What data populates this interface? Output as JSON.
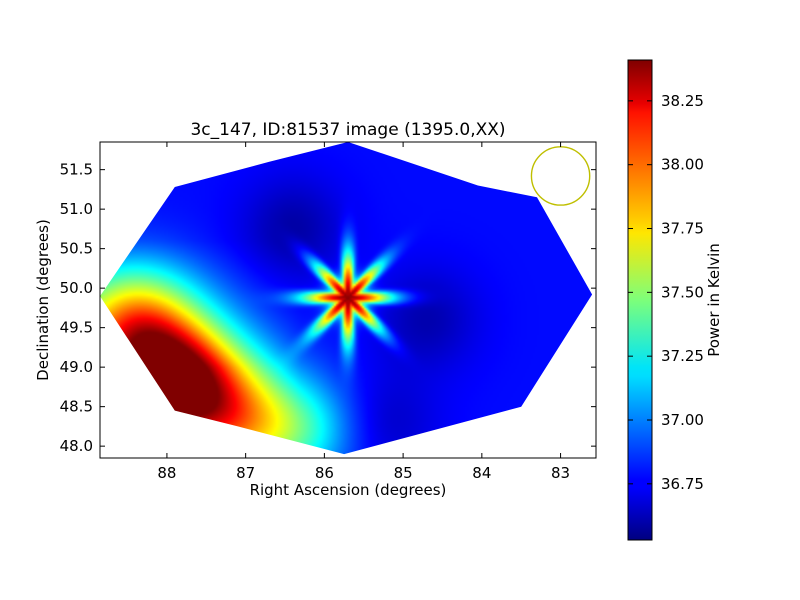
{
  "chart_data": {
    "type": "heatmap",
    "title": "3c_147, ID:81537 image (1395.0,XX)",
    "xlabel": "Right Ascension (degrees)",
    "ylabel": "Declination (degrees)",
    "xlim": [
      88.85,
      82.55
    ],
    "ylim": [
      47.85,
      51.85
    ],
    "x_ticks": [
      88,
      87,
      86,
      85,
      84,
      83
    ],
    "y_ticks": [
      48.0,
      48.5,
      49.0,
      49.5,
      50.0,
      50.5,
      51.0,
      51.5
    ],
    "x_tick_labels": [
      "88",
      "87",
      "86",
      "85",
      "84",
      "83"
    ],
    "y_tick_labels": [
      "48.0",
      "48.5",
      "49.0",
      "49.5",
      "50.0",
      "50.5",
      "51.0",
      "51.5"
    ],
    "colorbar": {
      "label": "Power in Kelvin",
      "range": [
        36.53,
        38.41
      ],
      "ticks": [
        36.75,
        37.0,
        37.25,
        37.5,
        37.75,
        38.0,
        38.25
      ],
      "tick_labels": [
        "36.75",
        "37.00",
        "37.25",
        "37.50",
        "37.75",
        "38.00",
        "38.25"
      ],
      "colormap": "jet"
    },
    "beam_circle": {
      "ra": 83.0,
      "dec": 51.42,
      "radius_deg": 0.37,
      "color": "#bfbf00"
    },
    "footprint": [
      [
        85.7,
        51.85
      ],
      [
        84.05,
        51.3
      ],
      [
        83.3,
        51.15
      ],
      [
        82.6,
        49.92
      ],
      [
        83.5,
        48.5
      ],
      [
        85.75,
        47.9
      ],
      [
        87.1,
        48.25
      ],
      [
        87.9,
        48.45
      ],
      [
        88.85,
        49.9
      ],
      [
        87.9,
        51.28
      ],
      [
        86.7,
        51.6
      ]
    ],
    "base_level": 36.78,
    "features": [
      {
        "ra": 85.7,
        "dec": 49.88,
        "peak": 38.4,
        "kind": "star"
      },
      {
        "ra": 87.85,
        "dec": 48.75,
        "peak": 38.33,
        "kind": "blob"
      },
      {
        "ra": 88.4,
        "dec": 49.5,
        "peak": 37.8,
        "kind": "blob"
      },
      {
        "ra": 87.0,
        "dec": 48.3,
        "peak": 37.65,
        "kind": "blob"
      },
      {
        "ra": 86.2,
        "dec": 48.2,
        "peak": 37.15,
        "kind": "blob"
      },
      {
        "ra": 86.4,
        "dec": 50.75,
        "peak": 36.58,
        "kind": "blob"
      },
      {
        "ra": 84.7,
        "dec": 49.6,
        "peak": 36.6,
        "kind": "blob"
      },
      {
        "ra": 85.2,
        "dec": 48.3,
        "peak": 36.65,
        "kind": "blob"
      }
    ]
  }
}
